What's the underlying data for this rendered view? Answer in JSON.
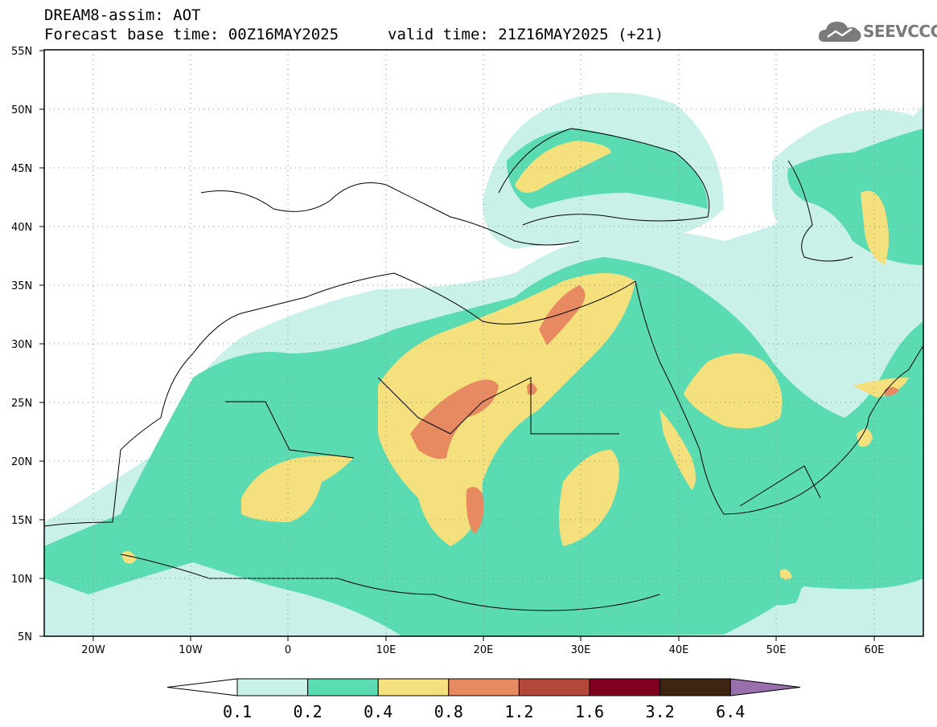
{
  "header": {
    "title": "DREAM8-assim: AOT",
    "base_time": "Forecast base time: 00Z16MAY2025",
    "valid_time": "valid time: 21Z16MAY2025 (+21)"
  },
  "logo": {
    "text": "SEEVCCC",
    "icon": "cloud-icon"
  },
  "map": {
    "lat_labels": [
      "55N",
      "50N",
      "45N",
      "40N",
      "35N",
      "30N",
      "25N",
      "20N",
      "15N",
      "10N",
      "5N"
    ],
    "lon_labels": [
      "20W",
      "10W",
      "0",
      "10E",
      "20E",
      "30E",
      "40E",
      "50E",
      "60E"
    ],
    "grid": "dotted",
    "colors": {
      "c01": "#c9f1ea",
      "c02": "#5bdbb2",
      "c04": "#f4e07c",
      "c08": "#e78a61",
      "c12": "#b3483a",
      "c16": "#80001f",
      "c32": "#3f2412",
      "c64": "#9a6fae"
    }
  },
  "colorbar": {
    "levels": [
      "0.1",
      "0.2",
      "0.4",
      "0.8",
      "1.2",
      "1.6",
      "3.2",
      "6.4"
    ],
    "colors": [
      "#ffffff",
      "#c9f1ea",
      "#5bdbb2",
      "#f4e07c",
      "#e78a61",
      "#b3483a",
      "#80001f",
      "#3f2412",
      "#9a6fae"
    ]
  }
}
